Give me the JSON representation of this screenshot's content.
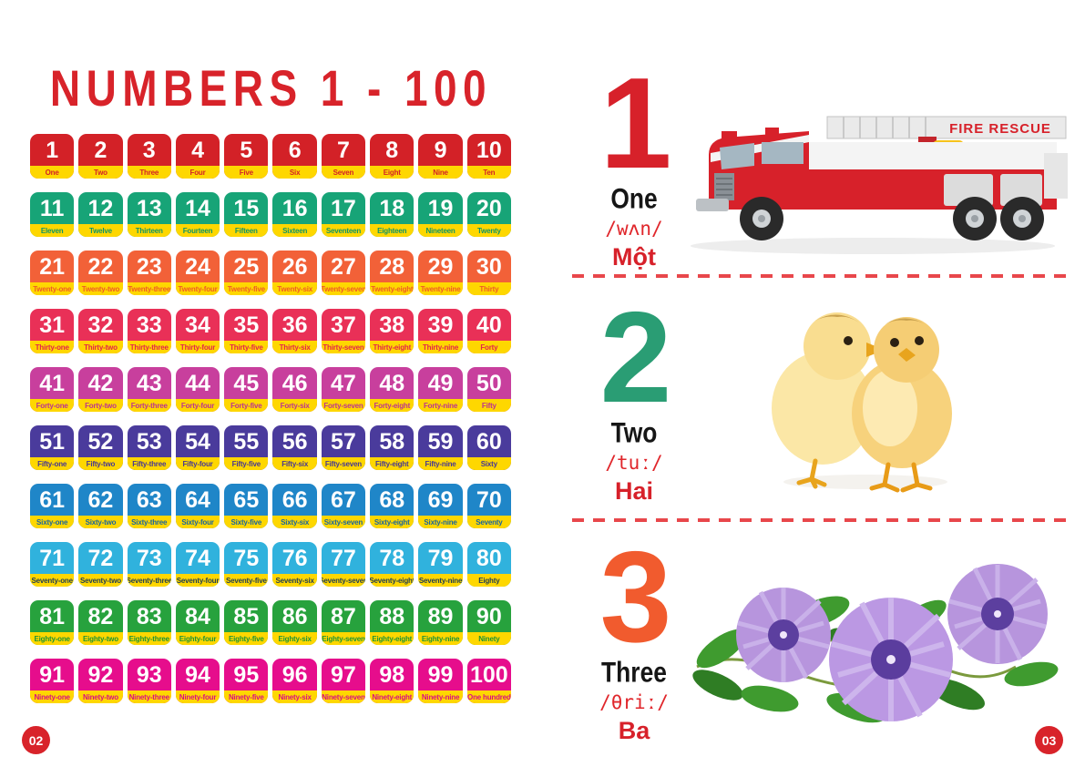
{
  "page_left": {
    "title": "NUMBERS 1 - 100",
    "page_number": "02",
    "grid": {
      "strip_color": "#fed700",
      "rows": [
        {
          "tile_color": "#d32127",
          "label_color": "#d32127",
          "cells": [
            [
              "1",
              "One"
            ],
            [
              "2",
              "Two"
            ],
            [
              "3",
              "Three"
            ],
            [
              "4",
              "Four"
            ],
            [
              "5",
              "Five"
            ],
            [
              "6",
              "Six"
            ],
            [
              "7",
              "Seven"
            ],
            [
              "8",
              "Eight"
            ],
            [
              "9",
              "Nine"
            ],
            [
              "10",
              "Ten"
            ]
          ]
        },
        {
          "tile_color": "#17a477",
          "label_color": "#0f9468",
          "cells": [
            [
              "11",
              "Eleven"
            ],
            [
              "12",
              "Twelve"
            ],
            [
              "13",
              "Thirteen"
            ],
            [
              "14",
              "Fourteen"
            ],
            [
              "15",
              "Fifteen"
            ],
            [
              "16",
              "Sixteen"
            ],
            [
              "17",
              "Seventeen"
            ],
            [
              "18",
              "Eighteen"
            ],
            [
              "19",
              "Nineteen"
            ],
            [
              "20",
              "Twenty"
            ]
          ]
        },
        {
          "tile_color": "#f26138",
          "label_color": "#ef5b26",
          "cells": [
            [
              "21",
              "Twenty-one"
            ],
            [
              "22",
              "Twenty-two"
            ],
            [
              "23",
              "Twenty-three"
            ],
            [
              "24",
              "Twenty-four"
            ],
            [
              "25",
              "Twenty-five"
            ],
            [
              "26",
              "Twenty-six"
            ],
            [
              "27",
              "Twenty-seven"
            ],
            [
              "28",
              "Twenty-eight"
            ],
            [
              "29",
              "Twenty-nine"
            ],
            [
              "30",
              "Thirty"
            ]
          ]
        },
        {
          "tile_color": "#e93057",
          "label_color": "#e2234b",
          "cells": [
            [
              "31",
              "Thirty-one"
            ],
            [
              "32",
              "Thirty-two"
            ],
            [
              "33",
              "Thirty-three"
            ],
            [
              "34",
              "Thirty-four"
            ],
            [
              "35",
              "Thirty-five"
            ],
            [
              "36",
              "Thirty-six"
            ],
            [
              "37",
              "Thirty-seven"
            ],
            [
              "38",
              "Thirty-eight"
            ],
            [
              "39",
              "Thirty-nine"
            ],
            [
              "40",
              "Forty"
            ]
          ]
        },
        {
          "tile_color": "#c83f9d",
          "label_color": "#bb3391",
          "cells": [
            [
              "41",
              "Forty-one"
            ],
            [
              "42",
              "Forty-two"
            ],
            [
              "43",
              "Forty-three"
            ],
            [
              "44",
              "Forty-four"
            ],
            [
              "45",
              "Forty-five"
            ],
            [
              "46",
              "Forty-six"
            ],
            [
              "47",
              "Forty-seven"
            ],
            [
              "48",
              "Forty-eight"
            ],
            [
              "49",
              "Forty-nine"
            ],
            [
              "50",
              "Fifty"
            ]
          ]
        },
        {
          "tile_color": "#4a3b9c",
          "label_color": "#453694",
          "cells": [
            [
              "51",
              "Fifty-one"
            ],
            [
              "52",
              "Fifty-two"
            ],
            [
              "53",
              "Fifty-three"
            ],
            [
              "54",
              "Fifty-four"
            ],
            [
              "55",
              "Fifty-five"
            ],
            [
              "56",
              "Fifty-six"
            ],
            [
              "57",
              "Fifty-seven"
            ],
            [
              "58",
              "Fifty-eight"
            ],
            [
              "59",
              "Fifty-nine"
            ],
            [
              "60",
              "Sixty"
            ]
          ]
        },
        {
          "tile_color": "#1f86c8",
          "label_color": "#17649f",
          "cells": [
            [
              "61",
              "Sixty-one"
            ],
            [
              "62",
              "Sixty-two"
            ],
            [
              "63",
              "Sixty-three"
            ],
            [
              "64",
              "Sixty-four"
            ],
            [
              "65",
              "Sixty-five"
            ],
            [
              "66",
              "Sixty-six"
            ],
            [
              "67",
              "Sixty-seven"
            ],
            [
              "68",
              "Sixty-eight"
            ],
            [
              "69",
              "Sixty-nine"
            ],
            [
              "70",
              "Seventy"
            ]
          ]
        },
        {
          "tile_color": "#30b2dd",
          "label_color": "#1e3c55",
          "cells": [
            [
              "71",
              "Seventy-one"
            ],
            [
              "72",
              "Seventy-two"
            ],
            [
              "73",
              "Seventy-three"
            ],
            [
              "74",
              "Seventy-four"
            ],
            [
              "75",
              "Seventy-five"
            ],
            [
              "76",
              "Seventy-six"
            ],
            [
              "77",
              "Seventy-seven"
            ],
            [
              "78",
              "Seventy-eight"
            ],
            [
              "79",
              "Seventy-nine"
            ],
            [
              "80",
              "Eighty"
            ]
          ]
        },
        {
          "tile_color": "#27a23d",
          "label_color": "#1f9434",
          "cells": [
            [
              "81",
              "Eighty-one"
            ],
            [
              "82",
              "Eighty-two"
            ],
            [
              "83",
              "Eighty-three"
            ],
            [
              "84",
              "Eighty-four"
            ],
            [
              "85",
              "Eighty-five"
            ],
            [
              "86",
              "Eighty-six"
            ],
            [
              "87",
              "Eighty-seven"
            ],
            [
              "88",
              "Eighty-eight"
            ],
            [
              "89",
              "Eighty-nine"
            ],
            [
              "90",
              "Ninety"
            ]
          ]
        },
        {
          "tile_color": "#e60d8c",
          "label_color": "#d90c84",
          "cells": [
            [
              "91",
              "Ninety-one"
            ],
            [
              "92",
              "Ninety-two"
            ],
            [
              "93",
              "Ninety-three"
            ],
            [
              "94",
              "Ninety-four"
            ],
            [
              "95",
              "Ninety-five"
            ],
            [
              "96",
              "Ninety-six"
            ],
            [
              "97",
              "Ninety-seven"
            ],
            [
              "98",
              "Ninety-eight"
            ],
            [
              "99",
              "Ninety-nine"
            ],
            [
              "100",
              "One hundred"
            ]
          ]
        }
      ]
    }
  },
  "page_right": {
    "page_number": "03",
    "entries": [
      {
        "numeral": "1",
        "numeral_color": "#d7212a",
        "word": "One",
        "ipa": "/wʌn/",
        "vietnamese": "Một",
        "image": "fire-truck",
        "image_text": "FIRE RESCUE"
      },
      {
        "numeral": "2",
        "numeral_color": "#2a9d74",
        "word": "Two",
        "ipa": "/tuː/",
        "vietnamese": "Hai",
        "image": "chicks"
      },
      {
        "numeral": "3",
        "numeral_color": "#f15b2e",
        "word": "Three",
        "ipa": "/θriː/",
        "vietnamese": "Ba",
        "image": "flowers"
      }
    ]
  },
  "colors": {
    "accent_red": "#d8232a",
    "dash_red": "#e8474b",
    "strip_yellow": "#fed700"
  }
}
